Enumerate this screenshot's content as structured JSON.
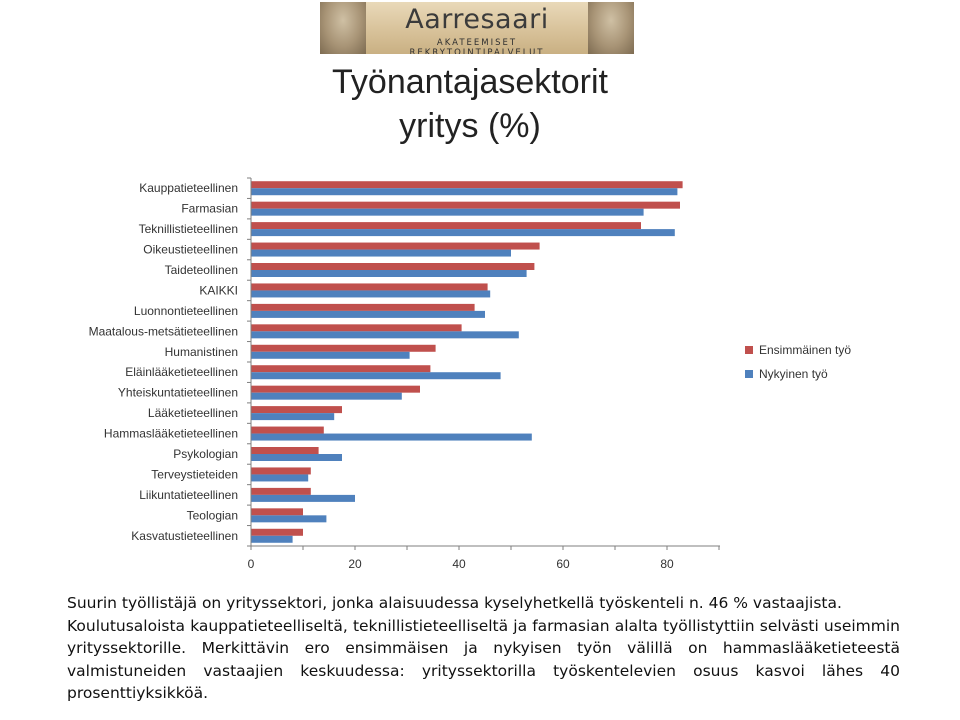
{
  "logo": {
    "brand": "Aarresaari",
    "tagline": "AKATEEMISET REKRYTOINTIPALVELUT"
  },
  "title": {
    "line1": "Työnantajasektorit",
    "line2": "yritys (%)"
  },
  "colors": {
    "series_first": "#c0504d",
    "series_current": "#4f81bd"
  },
  "chart_data": {
    "type": "bar",
    "orientation": "horizontal",
    "categories": [
      "Kauppatieteellinen",
      "Farmasian",
      "Teknillistieteellinen",
      "Oikeustieteellinen",
      "Taideteollinen",
      "KAIKKI",
      "Luonnontieteellinen",
      "Maatalous-metsätieteellinen",
      "Humanistinen",
      "Eläinlääketieteellinen",
      "Yhteiskuntatieteellinen",
      "Lääketieteellinen",
      "Hammaslääketieteellinen",
      "Psykologian",
      "Terveystieteiden",
      "Liikuntatieteellinen",
      "Teologian",
      "Kasvatustieteellinen"
    ],
    "series": [
      {
        "name": "Ensimmäinen työ",
        "values": [
          83,
          82.5,
          75,
          55.5,
          54.5,
          45.5,
          43,
          40.5,
          35.5,
          34.5,
          32.5,
          17.5,
          14,
          13,
          11.5,
          11.5,
          10,
          10
        ]
      },
      {
        "name": "Nykyinen työ",
        "values": [
          82,
          75.5,
          81.5,
          50,
          53,
          46,
          45,
          51.5,
          30.5,
          48,
          29,
          16,
          54,
          17.5,
          11,
          20,
          14.5,
          8
        ]
      }
    ],
    "xlim": [
      0,
      80
    ],
    "xticks": [
      "0",
      "20",
      "40",
      "60",
      "80"
    ],
    "grid": false,
    "legend_position": "right"
  },
  "caption": {
    "paragraph1": "Suurin työllistäjä on yrityssektori, jonka alaisuudessa kyselyhetkellä työskenteli n. 46 % vastaajista.",
    "paragraph2": "Koulutusaloista kauppatieteelliseltä, teknillistieteelliseltä ja farmasian alalta työllistyttiin selvästi useimmin yrityssektorille. Merkittävin ero ensimmäisen ja nykyisen työn välillä on hammaslääketieteestä valmistuneiden vastaajien keskuudessa: yrityssektorilla työskentelevien osuus kasvoi lähes 40 prosenttiyksikköä."
  }
}
